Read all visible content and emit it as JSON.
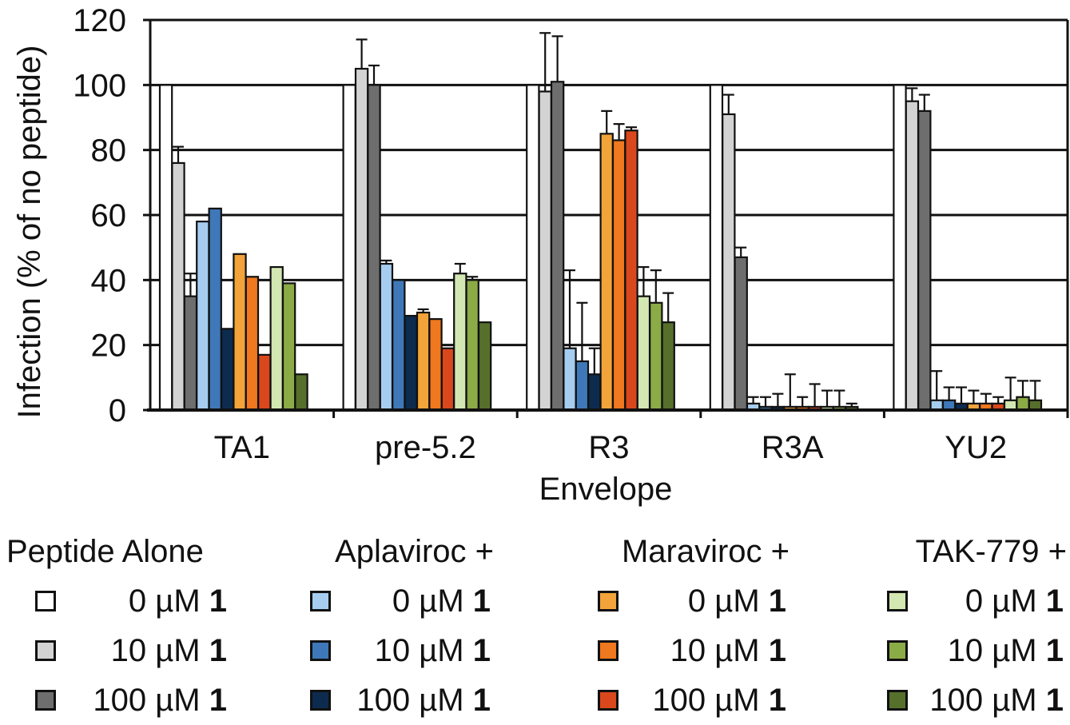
{
  "chart_data": {
    "type": "bar",
    "xlabel": "Envelope",
    "ylabel": "Infection (% of no peptide)",
    "ylim": [
      0,
      120
    ],
    "yticks": [
      "0",
      "20",
      "40",
      "60",
      "80",
      "100",
      "120"
    ],
    "grid": true,
    "legend_position": "bottom",
    "categories": [
      "TA1",
      "pre-5.2",
      "R3",
      "R3A",
      "YU2"
    ],
    "series": [
      {
        "name": "0 µM 1",
        "group": "Peptide Alone",
        "color": "#ffffff",
        "values": [
          100,
          100,
          100,
          100,
          100
        ],
        "errors": [
          0,
          0,
          0,
          0,
          0
        ]
      },
      {
        "name": "10 µM 1",
        "group": "Peptide Alone",
        "color": "#d3d3d3",
        "values": [
          76,
          105,
          98,
          91,
          95
        ],
        "errors": [
          5,
          9,
          18,
          6,
          4
        ]
      },
      {
        "name": "100 µM 1",
        "group": "Peptide Alone",
        "color": "#6e6e6e",
        "values": [
          35,
          100,
          101,
          47,
          92
        ],
        "errors": [
          7,
          6,
          14,
          3,
          5
        ]
      },
      {
        "name": "0 µM 1",
        "group": "Aplaviroc +",
        "color": "#a6cdf0",
        "values": [
          58,
          45,
          19,
          2,
          3
        ],
        "errors": [
          0,
          1,
          24,
          2,
          9
        ]
      },
      {
        "name": "10 µM 1",
        "group": "Aplaviroc +",
        "color": "#3e78b8",
        "values": [
          62,
          40,
          15,
          1,
          3
        ],
        "errors": [
          0,
          0,
          18,
          3,
          4
        ]
      },
      {
        "name": "100 µM 1",
        "group": "Aplaviroc +",
        "color": "#0d2b4e",
        "values": [
          25,
          29,
          11,
          1,
          2
        ],
        "errors": [
          0,
          0,
          8,
          4,
          5
        ]
      },
      {
        "name": "0 µM 1",
        "group": "Maraviroc +",
        "color": "#f2a43a",
        "values": [
          48,
          30,
          85,
          1,
          2
        ],
        "errors": [
          0,
          1,
          7,
          10,
          4
        ]
      },
      {
        "name": "10 µM 1",
        "group": "Maraviroc +",
        "color": "#f0781e",
        "values": [
          41,
          28,
          83,
          1,
          2
        ],
        "errors": [
          0,
          0,
          5,
          3,
          3
        ]
      },
      {
        "name": "100 µM 1",
        "group": "Maraviroc +",
        "color": "#d9481c",
        "values": [
          17,
          19,
          86,
          1,
          2
        ],
        "errors": [
          0,
          0,
          1,
          7,
          2
        ]
      },
      {
        "name": "0 µM 1",
        "group": "TAK-779 +",
        "color": "#d3e7b2",
        "values": [
          44,
          42,
          35,
          1,
          3
        ],
        "errors": [
          0,
          3,
          9,
          5,
          7
        ]
      },
      {
        "name": "10 µM 1",
        "group": "TAK-779 +",
        "color": "#8bab46",
        "values": [
          39,
          40,
          33,
          1,
          4
        ],
        "errors": [
          0,
          1,
          10,
          5,
          5
        ]
      },
      {
        "name": "100 µM 1",
        "group": "TAK-779 +",
        "color": "#56702c",
        "values": [
          11,
          27,
          27,
          1,
          3
        ],
        "errors": [
          0,
          0,
          9,
          1,
          6
        ]
      }
    ]
  },
  "legend": {
    "groups": [
      {
        "title": "Peptide Alone",
        "entries": [
          {
            "text": "0 µM ",
            "bold": "1",
            "color": "#ffffff"
          },
          {
            "text": "10 µM ",
            "bold": "1",
            "color": "#d3d3d3"
          },
          {
            "text": "100 µM ",
            "bold": "1",
            "color": "#6e6e6e"
          }
        ]
      },
      {
        "title": "Aplaviroc +",
        "entries": [
          {
            "text": "0 µM ",
            "bold": "1",
            "color": "#a6cdf0"
          },
          {
            "text": "10 µM ",
            "bold": "1",
            "color": "#3e78b8"
          },
          {
            "text": "100 µM ",
            "bold": "1",
            "color": "#0d2b4e"
          }
        ]
      },
      {
        "title": "Maraviroc +",
        "entries": [
          {
            "text": "0 µM ",
            "bold": "1",
            "color": "#f2a43a"
          },
          {
            "text": "10 µM ",
            "bold": "1",
            "color": "#f0781e"
          },
          {
            "text": "100 µM ",
            "bold": "1",
            "color": "#d9481c"
          }
        ]
      },
      {
        "title": "TAK-779 +",
        "entries": [
          {
            "text": "0 µM ",
            "bold": "1",
            "color": "#d3e7b2"
          },
          {
            "text": "10 µM ",
            "bold": "1",
            "color": "#8bab46"
          },
          {
            "text": "100 µM ",
            "bold": "1",
            "color": "#56702c"
          }
        ]
      }
    ]
  }
}
